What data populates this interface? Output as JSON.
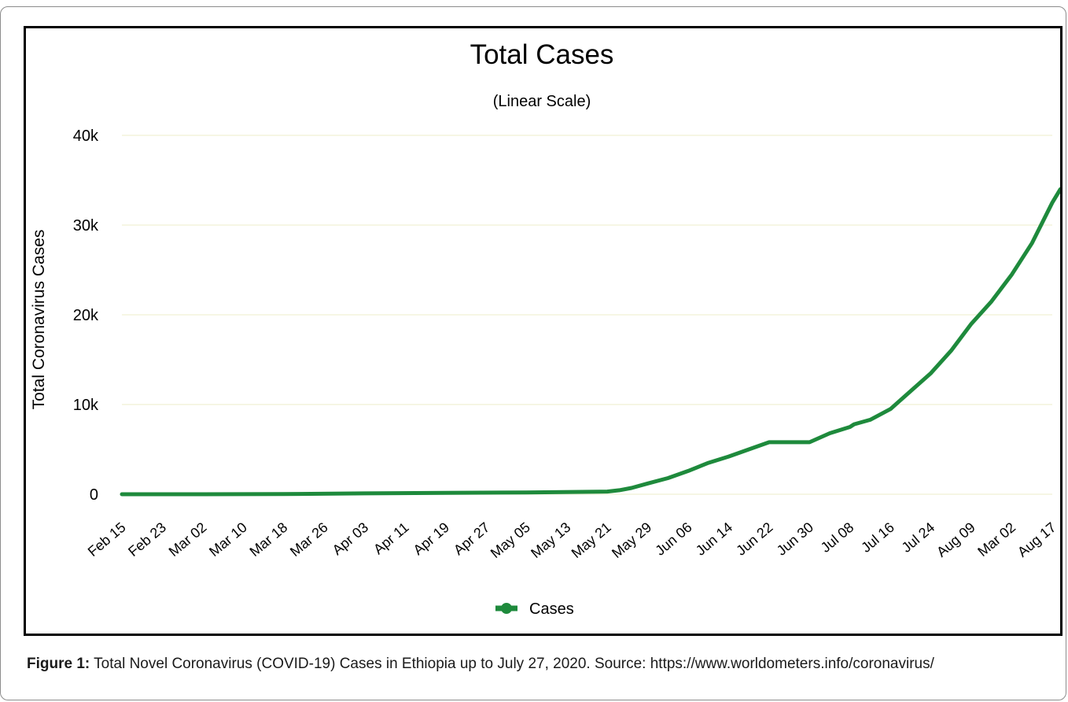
{
  "chart_data": {
    "type": "line",
    "title": "Total Cases",
    "subtitle": "(Linear Scale)",
    "ylabel": "Total Coronavirus Cases",
    "xlabel": "",
    "ylim": [
      0,
      40000
    ],
    "y_ticks": [
      0,
      10000,
      20000,
      30000,
      40000
    ],
    "y_tick_labels": [
      "0",
      "10k",
      "20k",
      "30k",
      "40k"
    ],
    "x_tick_labels": [
      "Feb 15",
      "Feb 23",
      "Mar 02",
      "Mar 10",
      "Mar 18",
      "Mar 26",
      "Apr 03",
      "Apr 11",
      "Apr 19",
      "Apr 27",
      "May 05",
      "May 13",
      "May 21",
      "May 29",
      "Jun 06",
      "Jun 14",
      "Jun 22",
      "Jun 30",
      "Jul 08",
      "Jul 16",
      "Jul 24",
      "Aug 09",
      "Mar 02",
      "Aug 17"
    ],
    "grid": true,
    "legend": "bottom-center",
    "series": [
      {
        "name": "Cases",
        "color": "#1e8a3c",
        "x": [
          0,
          2,
          4,
          6,
          8,
          10,
          12,
          12.3,
          12.6,
          13,
          13.5,
          14,
          14.5,
          15,
          15.5,
          16,
          16.5,
          17,
          17.5,
          18,
          18.1,
          18.5,
          19,
          19.5,
          20,
          20.5,
          21,
          21.5,
          22,
          22.5,
          23,
          23.2
        ],
        "values": [
          0,
          0,
          20,
          100,
          150,
          200,
          300,
          450,
          700,
          1200,
          1800,
          2600,
          3500,
          4200,
          5000,
          5800,
          5800,
          5800,
          6800,
          7500,
          7800,
          8300,
          9500,
          11500,
          13500,
          16000,
          19000,
          21500,
          24500,
          28000,
          32500,
          34000
        ]
      }
    ]
  },
  "caption": {
    "label": "Figure 1:",
    "text": " Total Novel Coronavirus (COVID-19) Cases in Ethiopia up to July 27, 2020. Source: https://www.worldometers.info/coronavirus/"
  }
}
